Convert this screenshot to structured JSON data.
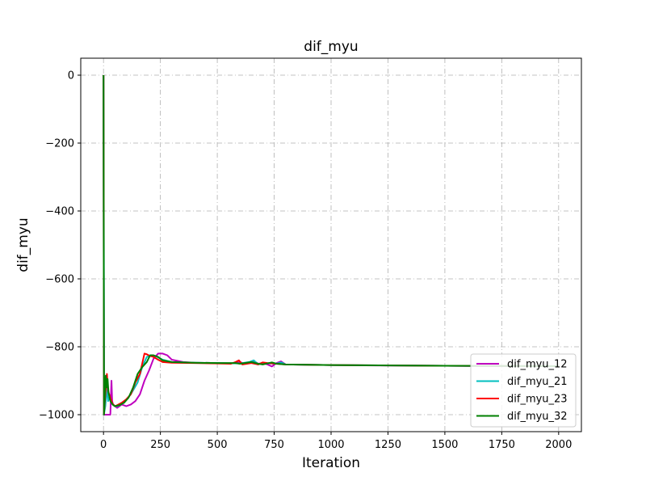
{
  "chart_data": {
    "type": "line",
    "title": "dif_myu",
    "xlabel": "Iteration",
    "ylabel": "dif_myu",
    "xlim": [
      -100,
      2100
    ],
    "ylim": [
      -1050,
      50
    ],
    "xticks": [
      0,
      250,
      500,
      750,
      1000,
      1250,
      1500,
      1750,
      2000
    ],
    "yticks": [
      0,
      -200,
      -400,
      -600,
      -800,
      -1000
    ],
    "grid": true,
    "grid_style": "dash-dot",
    "legend_position": "lower right",
    "series": [
      {
        "name": "dif_myu_12",
        "color": "#bf00bf",
        "x": [
          0,
          2,
          4,
          30,
          35,
          38,
          42,
          50,
          60,
          80,
          100,
          120,
          140,
          160,
          180,
          200,
          220,
          240,
          260,
          280,
          300,
          350,
          400,
          500,
          560,
          580,
          600,
          620,
          640,
          660,
          680,
          700,
          720,
          740,
          760,
          780,
          800,
          900,
          1000,
          1200,
          1500,
          1700,
          2000
        ],
        "y": [
          0,
          -1000,
          -1000,
          -1000,
          -900,
          -960,
          -970,
          -975,
          -980,
          -970,
          -975,
          -970,
          -960,
          -940,
          -900,
          -870,
          -835,
          -820,
          -820,
          -825,
          -838,
          -845,
          -847,
          -848,
          -849,
          -848,
          -845,
          -850,
          -848,
          -842,
          -850,
          -848,
          -852,
          -858,
          -848,
          -843,
          -852,
          -853,
          -854,
          -855,
          -856,
          -857,
          -857
        ]
      },
      {
        "name": "dif_myu_21",
        "color": "#00bfbf",
        "x": [
          0,
          3,
          8,
          12,
          15,
          20,
          25,
          30,
          40,
          50,
          60,
          70,
          90,
          120,
          150,
          170,
          190,
          210,
          230,
          260,
          300,
          400,
          500,
          600,
          640,
          660,
          680,
          700,
          760,
          780,
          800,
          1000,
          1500,
          2000
        ],
        "y": [
          0,
          -995,
          -975,
          -940,
          -920,
          -960,
          -950,
          -955,
          -970,
          -975,
          -975,
          -972,
          -965,
          -940,
          -905,
          -860,
          -830,
          -825,
          -828,
          -838,
          -845,
          -847,
          -848,
          -849,
          -845,
          -840,
          -852,
          -848,
          -850,
          -846,
          -852,
          -854,
          -856,
          -857
        ]
      },
      {
        "name": "dif_myu_23",
        "color": "#ff0000",
        "x": [
          0,
          2,
          5,
          10,
          15,
          20,
          30,
          40,
          50,
          60,
          80,
          100,
          120,
          140,
          160,
          180,
          190,
          200,
          220,
          240,
          260,
          300,
          400,
          500,
          560,
          580,
          595,
          610,
          630,
          650,
          680,
          700,
          720,
          760,
          800,
          1000,
          1500,
          2000
        ],
        "y": [
          0,
          -998,
          -970,
          -920,
          -880,
          -930,
          -950,
          -968,
          -975,
          -972,
          -965,
          -955,
          -940,
          -905,
          -880,
          -820,
          -822,
          -826,
          -830,
          -838,
          -845,
          -847,
          -848,
          -849,
          -850,
          -845,
          -840,
          -852,
          -850,
          -848,
          -852,
          -846,
          -848,
          -850,
          -852,
          -854,
          -856,
          -857
        ]
      },
      {
        "name": "dif_myu_32",
        "color": "#008000",
        "x": [
          0,
          2,
          5,
          8,
          10,
          14,
          18,
          22,
          30,
          40,
          50,
          70,
          90,
          110,
          130,
          150,
          170,
          190,
          205,
          220,
          240,
          260,
          300,
          400,
          500,
          580,
          600,
          620,
          650,
          680,
          700,
          740,
          760,
          800,
          1000,
          1500,
          2000
        ],
        "y": [
          0,
          -1000,
          -960,
          -900,
          -885,
          -920,
          -895,
          -935,
          -960,
          -970,
          -975,
          -972,
          -965,
          -950,
          -920,
          -880,
          -860,
          -845,
          -825,
          -825,
          -830,
          -840,
          -845,
          -847,
          -848,
          -848,
          -850,
          -848,
          -845,
          -850,
          -852,
          -846,
          -850,
          -852,
          -854,
          -856,
          -857
        ]
      }
    ]
  }
}
